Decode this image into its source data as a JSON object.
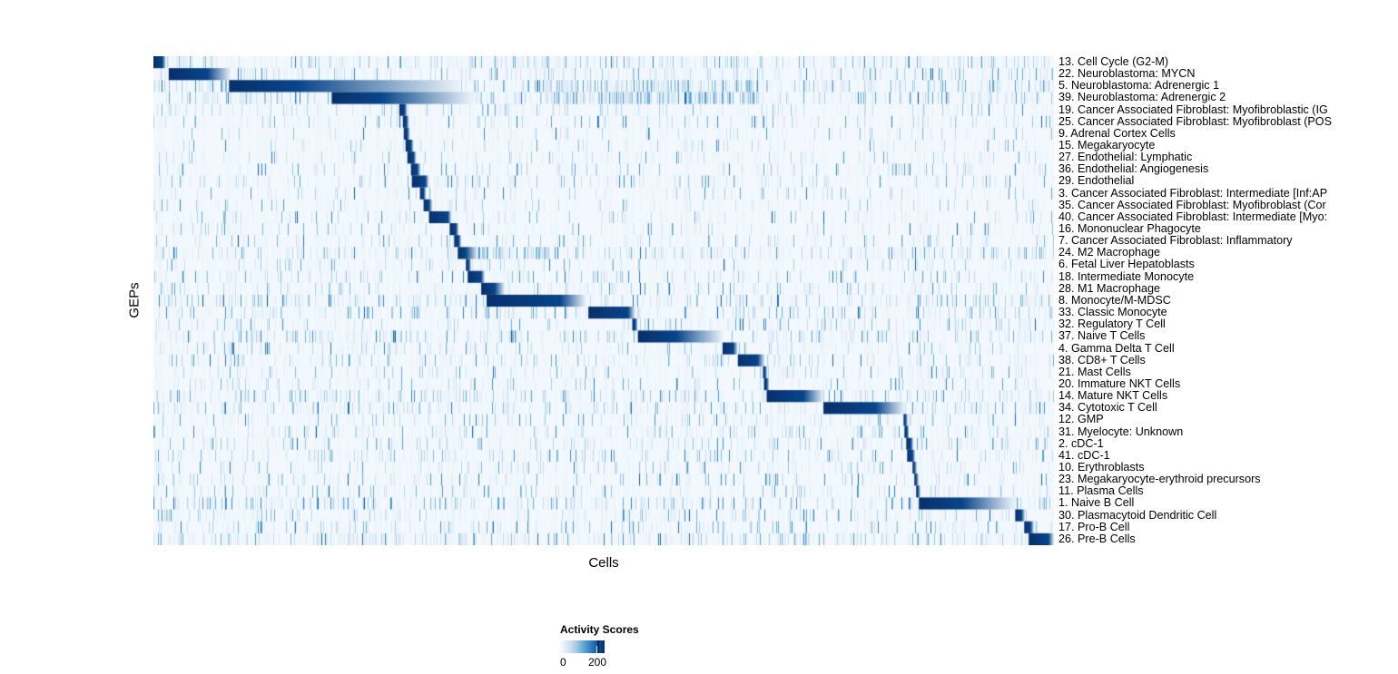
{
  "chart_data": {
    "type": "heatmap",
    "title": "",
    "xlabel": "Cells",
    "ylabel": "GEPs",
    "colormap": {
      "name": "Blues",
      "low": "#F7FBFF",
      "high": "#08306B",
      "stops": [
        [
          247,
          251,
          255
        ],
        [
          222,
          235,
          247
        ],
        [
          198,
          219,
          239
        ],
        [
          158,
          202,
          225
        ],
        [
          107,
          174,
          214
        ],
        [
          66,
          146,
          198
        ],
        [
          33,
          113,
          181
        ],
        [
          8,
          81,
          156
        ],
        [
          8,
          48,
          107
        ]
      ]
    },
    "legend": {
      "title": "Activity Scores",
      "ticks": [
        {
          "label": "0",
          "frac": 0.0
        },
        {
          "label": "200",
          "frac": 0.84
        }
      ]
    },
    "rows": [
      {
        "label": "13. Cell Cycle (G2-M)",
        "block": [
          0.0,
          0.01,
          0.014
        ],
        "noise": 0.4
      },
      {
        "label": "22. Neuroblastoma: MYCN",
        "block": [
          0.017,
          0.06,
          0.086
        ],
        "noise": 0.35
      },
      {
        "label": "5. Neuroblastoma: Adrenergic 1",
        "block": [
          0.084,
          0.16,
          0.34
        ],
        "noise": 0.5,
        "hot": [
          0.43,
          0.67,
          0.5
        ]
      },
      {
        "label": "39. Neuroblastoma: Adrenergic 2",
        "block": [
          0.198,
          0.253,
          0.354
        ],
        "noise": 0.5,
        "hot": [
          0.43,
          0.67,
          0.7
        ]
      },
      {
        "label": "19. Cancer Associated Fibroblast: Myofibroblastic (IG",
        "block": [
          0.273,
          0.279,
          0.282
        ],
        "noise": 0.2
      },
      {
        "label": "25. Cancer Associated Fibroblast: Myofibroblast (POS",
        "block": [
          0.277,
          0.281,
          0.284
        ],
        "noise": 0.22
      },
      {
        "label": "9. Adrenal Cortex Cells",
        "block": [
          0.278,
          0.282,
          0.285
        ],
        "noise": 0.15
      },
      {
        "label": "15. Megakaryocyte",
        "block": [
          0.28,
          0.286,
          0.289
        ],
        "noise": 0.18
      },
      {
        "label": "27. Endothelial: Lymphatic",
        "block": [
          0.282,
          0.289,
          0.292
        ],
        "noise": 0.2
      },
      {
        "label": "36. Endothelial: Angiogenesis",
        "block": [
          0.286,
          0.293,
          0.297
        ],
        "noise": 0.22
      },
      {
        "label": "29. Endothelial",
        "block": [
          0.287,
          0.302,
          0.306
        ],
        "noise": 0.25
      },
      {
        "label": "3. Cancer Associated Fibroblast: Intermediate [Inf:AP",
        "block": [
          0.296,
          0.3,
          0.303
        ],
        "noise": 0.18
      },
      {
        "label": "35. Cancer Associated Fibroblast: Myofibroblast (Cor",
        "block": [
          0.3,
          0.306,
          0.31
        ],
        "noise": 0.18
      },
      {
        "label": "40. Cancer Associated Fibroblast: Intermediate [Myo:",
        "block": [
          0.306,
          0.327,
          0.331
        ],
        "noise": 0.2
      },
      {
        "label": "16. Mononuclear Phagocyte",
        "block": [
          0.329,
          0.336,
          0.339
        ],
        "noise": 0.22
      },
      {
        "label": "7. Cancer Associated Fibroblast: Inflammatory",
        "block": [
          0.334,
          0.339,
          0.342
        ],
        "noise": 0.18
      },
      {
        "label": "24. M2 Macrophage",
        "block": [
          0.338,
          0.347,
          0.36
        ],
        "noise": 0.45,
        "hot": [
          0.36,
          0.44,
          0.65
        ]
      },
      {
        "label": "6. Fetal Liver Hepatoblasts",
        "block": [
          0.347,
          0.35,
          0.353
        ],
        "noise": 0.25
      },
      {
        "label": "18. Intermediate Monocyte",
        "block": [
          0.349,
          0.364,
          0.368
        ],
        "noise": 0.3
      },
      {
        "label": "28. M1 Macrophage",
        "block": [
          0.364,
          0.379,
          0.39
        ],
        "noise": 0.3
      },
      {
        "label": "8. Monocyte/M-MDSC",
        "block": [
          0.37,
          0.452,
          0.48
        ],
        "noise": 0.45
      },
      {
        "label": "33. Classic Monocyte",
        "block": [
          0.483,
          0.527,
          0.535
        ],
        "noise": 0.4
      },
      {
        "label": "32. Regulatory T Cell",
        "block": [
          0.532,
          0.535,
          0.538
        ],
        "noise": 0.3
      },
      {
        "label": "37. Naive T Cells",
        "block": [
          0.538,
          0.581,
          0.632
        ],
        "noise": 0.45
      },
      {
        "label": "4. Gamma Delta T Cell",
        "block": [
          0.632,
          0.644,
          0.649
        ],
        "noise": 0.3
      },
      {
        "label": "38. CD8+ T Cells",
        "block": [
          0.649,
          0.671,
          0.679
        ],
        "noise": 0.3
      },
      {
        "label": "21. Mast Cells",
        "block": [
          0.677,
          0.679,
          0.682
        ],
        "noise": 0.22
      },
      {
        "label": "20. Immature NKT Cells",
        "block": [
          0.678,
          0.681,
          0.684
        ],
        "noise": 0.25
      },
      {
        "label": "14. Mature NKT Cells",
        "block": [
          0.681,
          0.722,
          0.744
        ],
        "noise": 0.4
      },
      {
        "label": "34. Cytotoxic T Cell",
        "block": [
          0.744,
          0.802,
          0.834
        ],
        "noise": 0.4
      },
      {
        "label": "12. GMP",
        "block": [
          0.833,
          0.835,
          0.838
        ],
        "noise": 0.22
      },
      {
        "label": "31. Myelocyte: Unknown",
        "block": [
          0.834,
          0.837,
          0.839
        ],
        "noise": 0.3
      },
      {
        "label": "2. cDC-1",
        "block": [
          0.836,
          0.841,
          0.844
        ],
        "noise": 0.28
      },
      {
        "label": "41. cDC-1",
        "block": [
          0.837,
          0.843,
          0.846
        ],
        "noise": 0.3
      },
      {
        "label": "10. Erythroblasts",
        "block": [
          0.843,
          0.845,
          0.848
        ],
        "noise": 0.25
      },
      {
        "label": "23. Megakaryocyte-erythroid precursors",
        "block": [
          0.845,
          0.847,
          0.85
        ],
        "noise": 0.28
      },
      {
        "label": "11. Plasma Cells",
        "block": [
          0.847,
          0.849,
          0.852
        ],
        "noise": 0.25
      },
      {
        "label": "1. Naive B Cell",
        "block": [
          0.85,
          0.898,
          0.956
        ],
        "noise": 0.45
      },
      {
        "label": "30. Plasmacytoid Dendritic Cell",
        "block": [
          0.957,
          0.964,
          0.968
        ],
        "noise": 0.3
      },
      {
        "label": "17. Pro-B Cell",
        "block": [
          0.967,
          0.974,
          0.978
        ],
        "noise": 0.3
      },
      {
        "label": "26. Pre-B Cells",
        "block": [
          0.972,
          0.994,
          1.0
        ],
        "noise": 0.45
      }
    ]
  }
}
